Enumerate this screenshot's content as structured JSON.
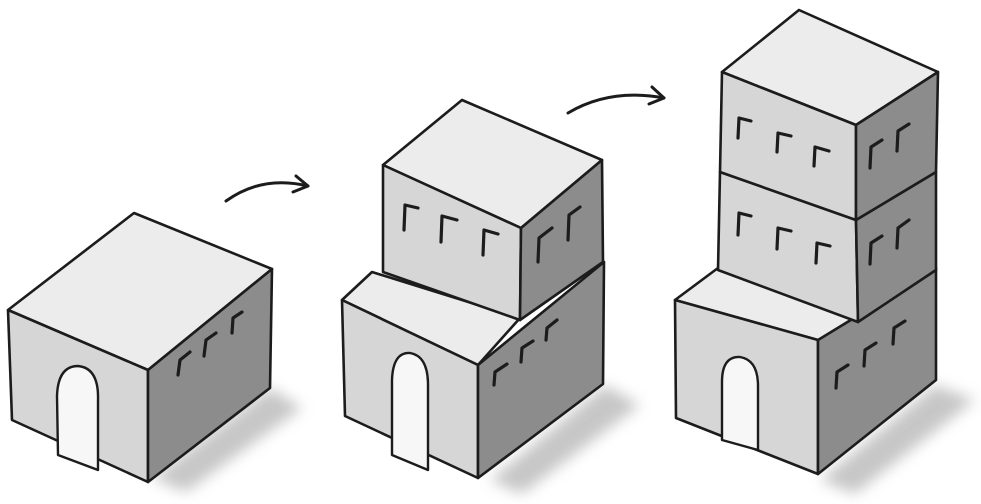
{
  "colors": {
    "top": "#ececec",
    "front": "#d6d6d6",
    "side": "#8c8c8c",
    "door": "#f7f7f7",
    "outline": "#1c1c1c",
    "shadow": "#bdbdbd",
    "background": "#ffffff"
  },
  "buildings": [
    {
      "name": "one-storey",
      "floors": 1
    },
    {
      "name": "two-storey",
      "floors": 2
    },
    {
      "name": "three-storey",
      "floors": 3
    }
  ],
  "icons": {
    "arrow": "curved-arrow-right",
    "door": "arched-door",
    "window": "window-mark"
  }
}
